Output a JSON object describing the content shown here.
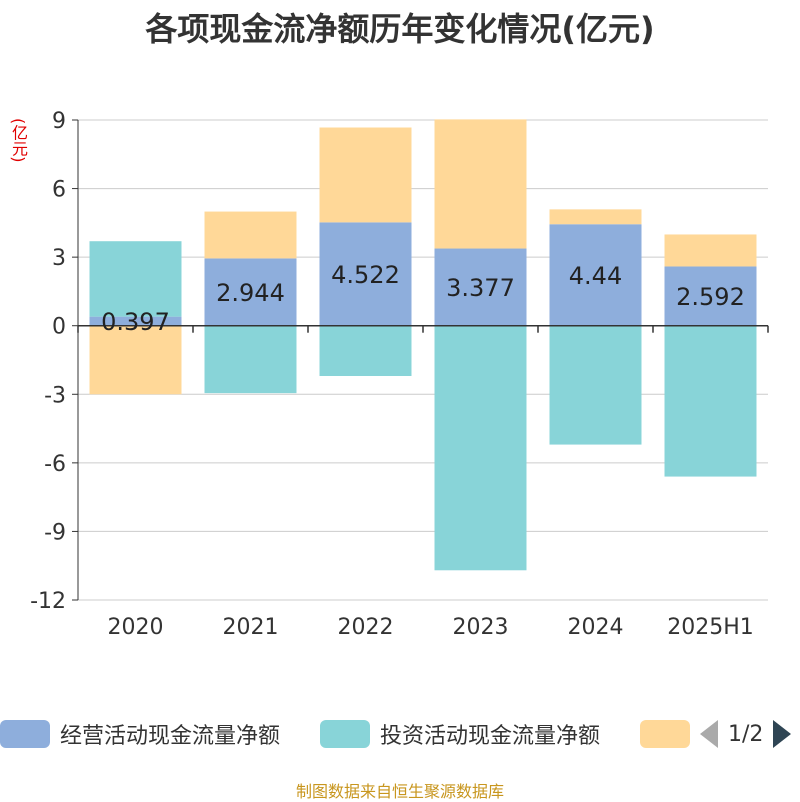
{
  "title": "各项现金流净额历年变化情况(亿元)",
  "unit_label": "(亿元)",
  "source_note": "制图数据来自恒生聚源数据库",
  "legend": {
    "items": [
      {
        "label": "经营活动现金流量净额",
        "color": "#8eaedc"
      },
      {
        "label": "投资活动现金流量净额",
        "color": "#88d4d8"
      },
      {
        "label": "",
        "color": "#ffd898"
      }
    ],
    "page_text": "1/2"
  },
  "chart_data": {
    "type": "bar",
    "stacked": true,
    "categories": [
      "2020",
      "2021",
      "2022",
      "2023",
      "2024",
      "2025H1"
    ],
    "ylim": [
      -12,
      9
    ],
    "yticks": [
      9,
      6,
      3,
      0,
      -3,
      -6,
      -9,
      -12
    ],
    "grid": true,
    "legend_position": "bottom",
    "series": [
      {
        "name": "经营活动现金流量净额",
        "color": "#8eaedc",
        "values": [
          0.397,
          2.944,
          4.522,
          3.377,
          4.44,
          2.592
        ],
        "labels": [
          "0.397",
          "2.944",
          "4.522",
          "3.377",
          "4.44",
          "2.592"
        ]
      },
      {
        "name": "投资活动现金流量净额",
        "color": "#88d4d8",
        "values": [
          3.3,
          -2.95,
          -2.2,
          -10.7,
          -5.2,
          -6.6
        ]
      },
      {
        "name": "",
        "color": "#ffd898",
        "values": [
          -3.0,
          2.05,
          4.15,
          5.65,
          0.65,
          1.4
        ]
      }
    ]
  }
}
